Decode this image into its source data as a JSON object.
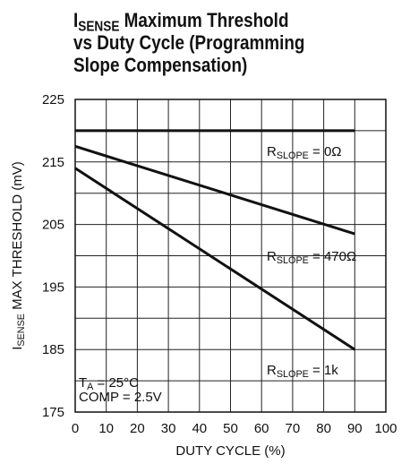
{
  "chart_data": {
    "type": "line",
    "title": [
      [
        {
          "text": "I"
        },
        {
          "text": "SENSE",
          "sub": true
        },
        {
          "text": " Maximum Threshold"
        }
      ],
      [
        {
          "text": "vs Duty Cycle (Programming"
        }
      ],
      [
        {
          "text": "Slope Compensation)"
        }
      ]
    ],
    "ylabel": [
      {
        "text": "I"
      },
      {
        "text": "SENSE",
        "sub": true
      },
      {
        "text": " MAX THRESHOLD (mV)"
      }
    ],
    "xlabel": "DUTY CYCLE (%)",
    "x": [
      0,
      90
    ],
    "series": [
      {
        "name": [
          {
            "text": "R"
          },
          {
            "text": "SLOPE",
            "sub": true
          },
          {
            "text": " = 0Ω"
          }
        ],
        "color": "#111111",
        "values": [
          220,
          220
        ]
      },
      {
        "name": [
          {
            "text": "R"
          },
          {
            "text": "SLOPE",
            "sub": true
          },
          {
            "text": " = 470Ω"
          }
        ],
        "color": "#111111",
        "values": [
          217.5,
          203.5
        ]
      },
      {
        "name": [
          {
            "text": "R"
          },
          {
            "text": "SLOPE",
            "sub": true
          },
          {
            "text": " = 1k"
          }
        ],
        "color": "#111111",
        "values": [
          214,
          185
        ]
      }
    ],
    "annotations": [
      [
        {
          "text": "T"
        },
        {
          "text": "A",
          "sub": true
        },
        {
          "text": " = 25°C"
        }
      ],
      [
        {
          "text": "COMP = 2.5V"
        }
      ]
    ],
    "xlim": [
      0,
      100
    ],
    "xticks": [
      0,
      10,
      20,
      30,
      40,
      50,
      60,
      70,
      80,
      90,
      100
    ],
    "ylim": [
      175,
      225
    ],
    "yticks": [
      175,
      185,
      195,
      205,
      215,
      225
    ],
    "yminorticks": [
      180,
      190,
      200,
      210,
      220
    ],
    "grid": true
  }
}
